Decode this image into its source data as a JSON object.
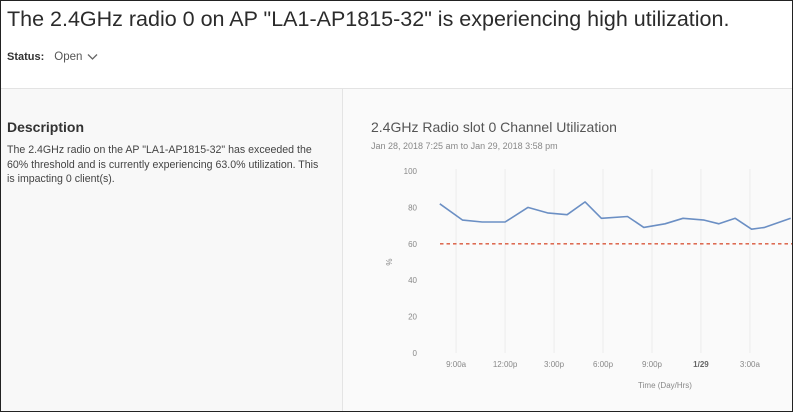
{
  "header": {
    "title": "The 2.4GHz radio 0 on AP \"LA1-AP1815-32\" is experiencing high utilization."
  },
  "status": {
    "label": "Status:",
    "value": "Open"
  },
  "description": {
    "heading": "Description",
    "text": "The 2.4GHz radio on the AP \"LA1-AP1815-32\" has exceeded the 60% threshold and is currently experiencing 63.0% utilization. This is impacting 0 client(s)."
  },
  "chart_data": {
    "type": "line",
    "title": "2.4GHz Radio slot 0 Channel Utilization",
    "subtitle": "Jan 28, 2018 7:25 am to Jan 29, 2018 3:58 pm",
    "xlabel": "Time (Day/Hrs)",
    "ylabel": "%",
    "ylim": [
      0,
      100
    ],
    "yticks": [
      0,
      20,
      40,
      60,
      80,
      100
    ],
    "xticks": [
      "9:00a",
      "12:00p",
      "3:00p",
      "6:00p",
      "9:00p",
      "1/29",
      "3:00a"
    ],
    "xticks_bold": [
      "1/29"
    ],
    "xlim_hours": [
      7.4,
      29.7
    ],
    "tick_hours": [
      9,
      12,
      15,
      18,
      21,
      24,
      27
    ],
    "grid": true,
    "series": [
      {
        "color": "#6b8fc4",
        "x_hours": [
          8.0,
          9.4,
          10.6,
          12.0,
          13.4,
          14.6,
          15.8,
          16.9,
          17.9,
          19.5,
          20.5,
          21.8,
          22.9,
          24.2,
          25.1,
          26.1,
          27.1,
          27.9,
          29.5
        ],
        "y": [
          82,
          73,
          72,
          72,
          80,
          77,
          76,
          83,
          74,
          75,
          69,
          71,
          74,
          73,
          71,
          74,
          68,
          69,
          74
        ]
      }
    ],
    "threshold": {
      "value": 60,
      "color": "#d9573b",
      "style": "dashed"
    }
  }
}
